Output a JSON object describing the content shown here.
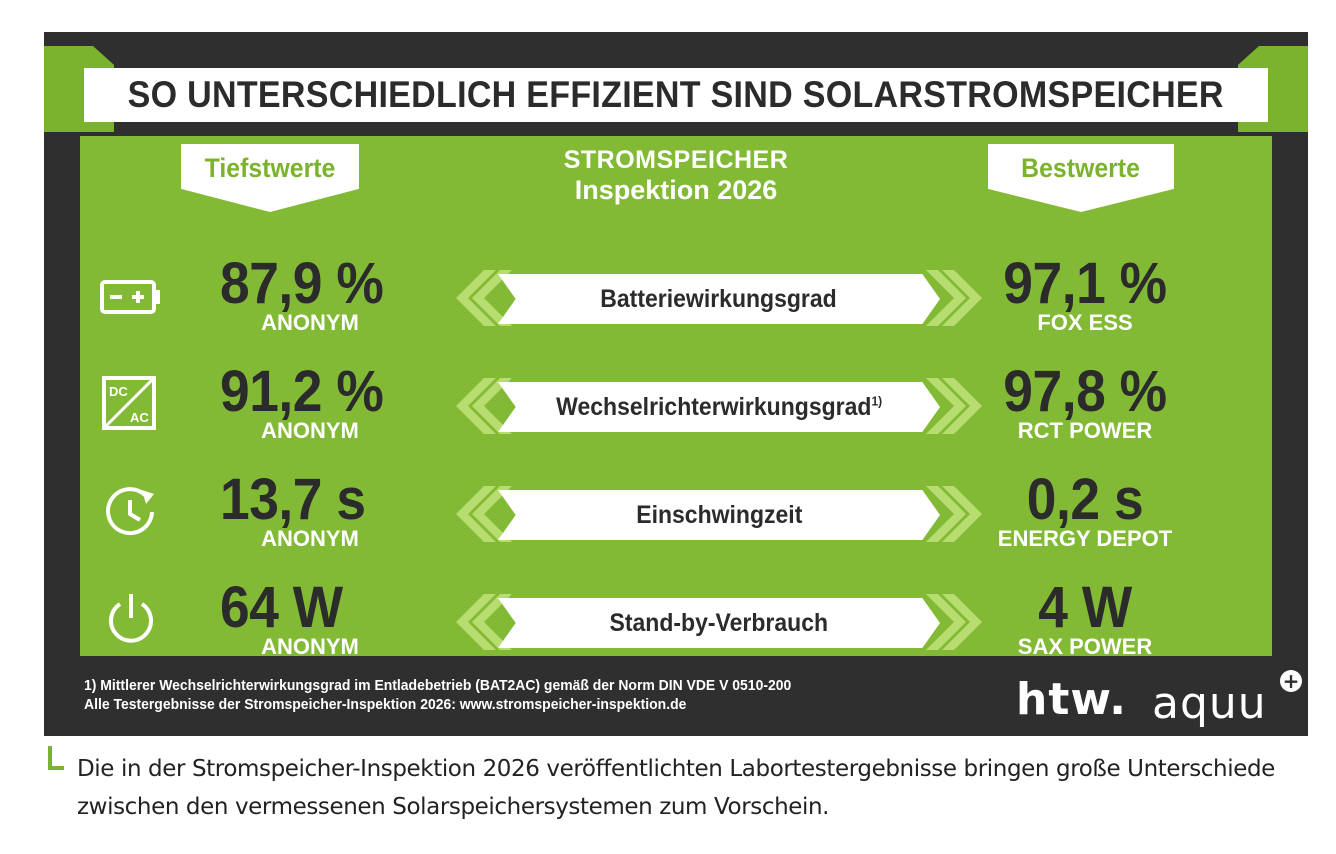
{
  "infographic": {
    "title": "SO UNTERSCHIEDLICH EFFIZIENT SIND SOLARSTROMSPEICHER",
    "low_header": "Tiefstwerte",
    "best_header": "Bestwerte",
    "center_heading_line1": "STROMSPEICHER",
    "center_heading_line2": "Inspektion 2026",
    "rows": [
      {
        "icon": "battery-icon",
        "metric": "Batteriewirkungsgrad",
        "low_value": "87,9 %",
        "low_name": "ANONYM",
        "best_value": "97,1 %",
        "best_name": "FOX ESS"
      },
      {
        "icon": "dc-ac-converter-icon",
        "metric": "Wechselrichterwirkungsgrad",
        "metric_note": "1)",
        "low_value": "91,2 %",
        "low_name": "ANONYM",
        "best_value": "97,8 %",
        "best_name": "RCT POWER"
      },
      {
        "icon": "clock-icon",
        "metric": "Einschwingzeit",
        "low_value": "13,7 s",
        "low_name": "ANONYM",
        "best_value": "0,2 s",
        "best_name": "ENERGY DEPOT"
      },
      {
        "icon": "power-icon",
        "metric": "Stand-by-Verbrauch",
        "low_value": "64 W",
        "low_name": "ANONYM",
        "best_value": "4 W",
        "best_name": "SAX POWER"
      }
    ],
    "icon_labels": {
      "dc": "DC",
      "ac": "AC"
    },
    "footnote_line1": "1) Mittlerer Wechselrichterwirkungsgrad im Entladebetrieb (BAT2AC) gemäß der Norm DIN VDE V 0510-200",
    "footnote_line2": "Alle Testergebnisse der Stromspeicher-Inspektion 2026: www.stromspeicher-inspektion.de",
    "logo_htw": "htw.",
    "logo_aquu": "aquu",
    "logo_plus": "+"
  },
  "caption": "Die in der Stromspeicher-Inspektion 2026 veröffentlichten Labortestergebnisse bringen große Unterschiede zwischen den vermessenen Solarspeichersystemen zum Vorschein.",
  "colors": {
    "green": "#83ba35",
    "dark": "#2f2f2f",
    "white": "#ffffff",
    "light_green_arrow": "#b7dc6f"
  }
}
